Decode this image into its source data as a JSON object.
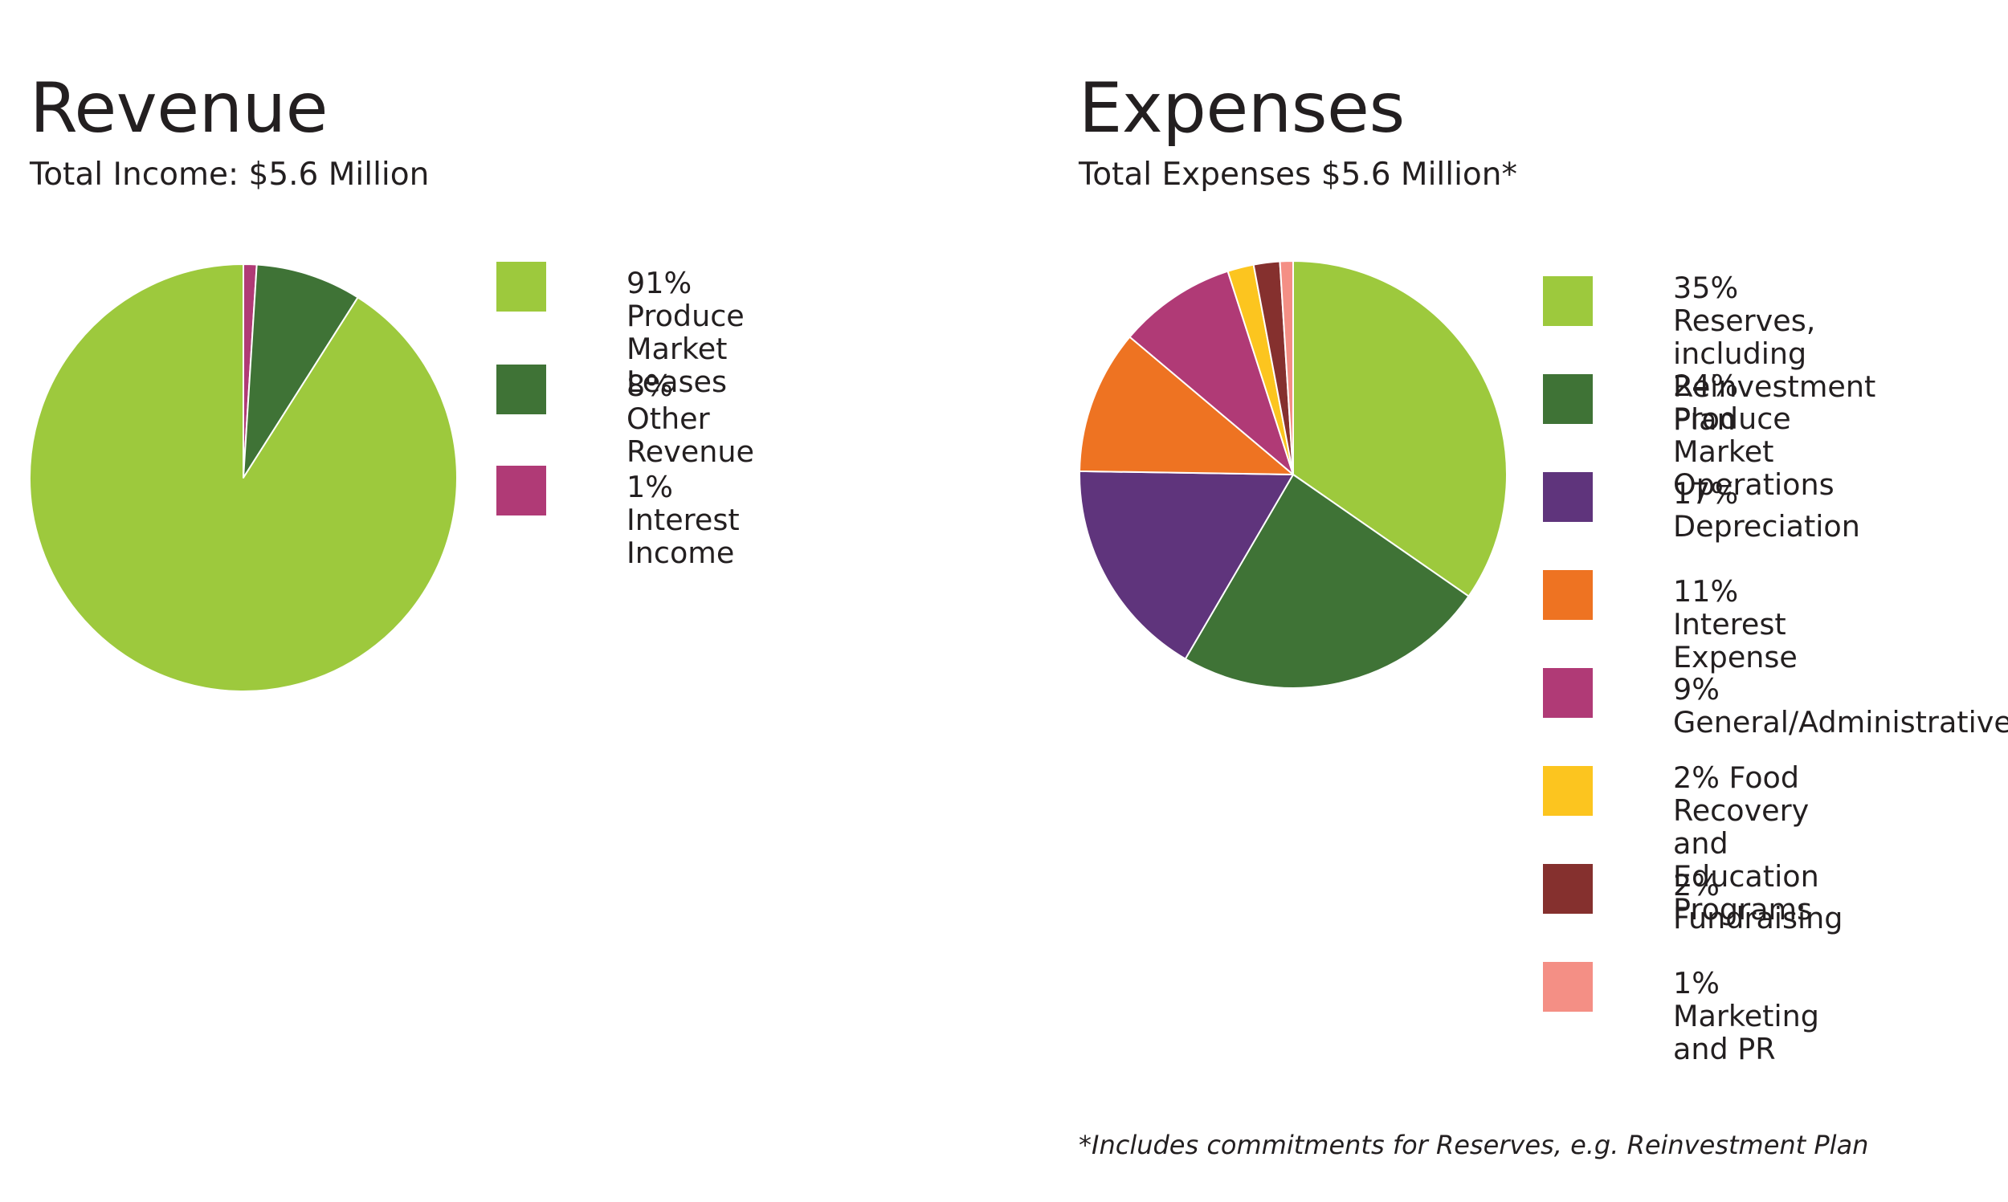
{
  "chart_data": [
    {
      "type": "pie",
      "title": "Revenue",
      "subtitle": "Total Income: $5.6 Million",
      "slices": [
        {
          "label": "91% Produce Market Leases",
          "value": 91,
          "color": "#9dc93d"
        },
        {
          "label": "8% Other Revenue",
          "value": 8,
          "color": "#3f7336"
        },
        {
          "label": "1% Interest Income",
          "value": 1,
          "color": "#b03a76"
        }
      ],
      "legend_position": "right"
    },
    {
      "type": "pie",
      "title": "Expenses",
      "subtitle": "Total Expenses $5.6 Million*",
      "slices": [
        {
          "label": "35% Reserves, including\nReinvestment Plan",
          "value": 35,
          "color": "#9dc93d"
        },
        {
          "label": "24% Produce Market\nOperations",
          "value": 24,
          "color": "#3f7336"
        },
        {
          "label": "17% Depreciation",
          "value": 17,
          "color": "#5f347c"
        },
        {
          "label": "11% Interest Expense",
          "value": 11,
          "color": "#ee7322"
        },
        {
          "label": "9% General/Administrative",
          "value": 9,
          "color": "#b03a76"
        },
        {
          "label": "2% Food Recovery and\nEducation Programs",
          "value": 2,
          "color": "#fcc51f"
        },
        {
          "label": "2% Fundraising",
          "value": 2,
          "color": "#85302e"
        },
        {
          "label": "1% Marketing and PR",
          "value": 1,
          "color": "#f48f85"
        }
      ],
      "legend_position": "right",
      "footnote": "*Includes commitments for Reserves, e.g. Reinvestment Plan"
    }
  ]
}
